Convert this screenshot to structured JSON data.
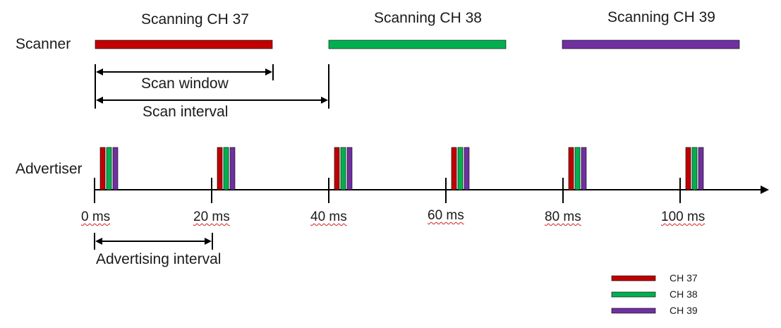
{
  "colors": {
    "ch37": "#C00000",
    "ch38": "#00B050",
    "ch39": "#7030A0",
    "line": "#000000"
  },
  "scanner": {
    "row_label": "Scanner",
    "channels": [
      {
        "label": "Scanning CH 37",
        "color": "#C00000"
      },
      {
        "label": "Scanning CH 38",
        "color": "#00B050"
      },
      {
        "label": "Scanning CH 39",
        "color": "#7030A0"
      }
    ],
    "scan_window_label": "Scan window",
    "scan_interval_label": "Scan interval"
  },
  "advertiser": {
    "row_label": "Advertiser",
    "advertising_interval_label": "Advertising interval",
    "timeline": {
      "ticks": [
        {
          "value": 0,
          "label": "0 ms"
        },
        {
          "value": 20,
          "label": "20 ms"
        },
        {
          "value": 40,
          "label": "40 ms"
        },
        {
          "value": 60,
          "label": "60 ms"
        },
        {
          "value": 80,
          "label": "80 ms"
        },
        {
          "value": 100,
          "label": "100 ms"
        }
      ]
    }
  },
  "legend": [
    {
      "label": "CH 37",
      "color": "#C00000"
    },
    {
      "label": "CH 38",
      "color": "#00B050"
    },
    {
      "label": "CH 39",
      "color": "#7030A0"
    }
  ]
}
